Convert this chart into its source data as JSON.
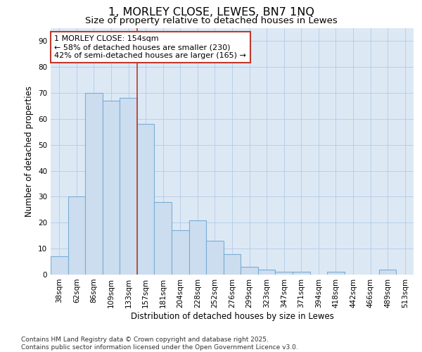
{
  "title_line1": "1, MORLEY CLOSE, LEWES, BN7 1NQ",
  "title_line2": "Size of property relative to detached houses in Lewes",
  "xlabel": "Distribution of detached houses by size in Lewes",
  "ylabel": "Number of detached properties",
  "categories": [
    "38sqm",
    "62sqm",
    "86sqm",
    "109sqm",
    "133sqm",
    "157sqm",
    "181sqm",
    "204sqm",
    "228sqm",
    "252sqm",
    "276sqm",
    "299sqm",
    "323sqm",
    "347sqm",
    "371sqm",
    "394sqm",
    "418sqm",
    "442sqm",
    "466sqm",
    "489sqm",
    "513sqm"
  ],
  "values": [
    7,
    30,
    70,
    67,
    68,
    58,
    28,
    17,
    21,
    13,
    8,
    3,
    2,
    1,
    1,
    0,
    1,
    0,
    0,
    2,
    0
  ],
  "bar_color": "#ccddf0",
  "bar_edge_color": "#7aadd4",
  "grid_color": "#b8cfe8",
  "background_color": "#dce9f5",
  "vline_x": 4.5,
  "vline_color": "#c0392b",
  "annotation_text": "1 MORLEY CLOSE: 154sqm\n← 58% of detached houses are smaller (230)\n42% of semi-detached houses are larger (165) →",
  "annotation_box_color": "#c0392b",
  "ylim": [
    0,
    95
  ],
  "yticks": [
    0,
    10,
    20,
    30,
    40,
    50,
    60,
    70,
    80,
    90
  ],
  "footnote": "Contains HM Land Registry data © Crown copyright and database right 2025.\nContains public sector information licensed under the Open Government Licence v3.0.",
  "title_fontsize": 11.5,
  "subtitle_fontsize": 9.5,
  "label_fontsize": 8.5,
  "tick_fontsize": 7.5,
  "annot_fontsize": 8,
  "footnote_fontsize": 6.5
}
